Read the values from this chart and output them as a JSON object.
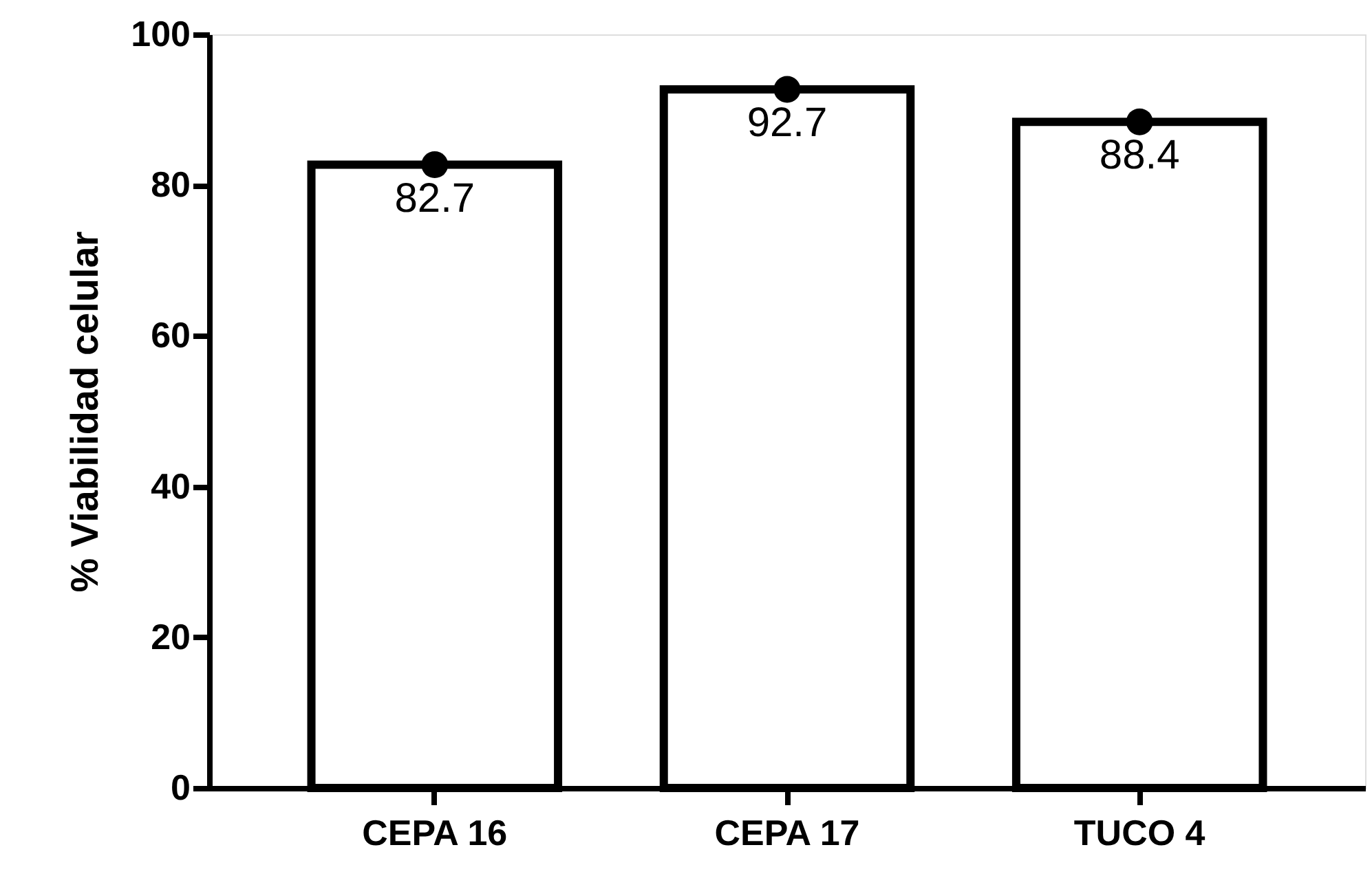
{
  "chart_data": {
    "type": "bar",
    "ylabel": "% Viabilidad celular",
    "categories": [
      "CEPA 16",
      "CEPA 17",
      "TUCO 4"
    ],
    "series": [
      {
        "color": "#ffffff",
        "values": [
          82.7,
          92.7,
          88.4
        ],
        "value_labels": [
          "82.7",
          "92.7",
          "88.4"
        ]
      },
      {
        "type": "scatter",
        "x": [
          "CEPA 16",
          "CEPA 17",
          "TUCO 4"
        ],
        "color": "#000000",
        "values": [
          82.7,
          92.7,
          88.4
        ],
        "marker": "circle"
      }
    ],
    "ylim": [
      0,
      100
    ],
    "yticks": [
      0,
      20,
      40,
      60,
      80,
      100
    ]
  }
}
